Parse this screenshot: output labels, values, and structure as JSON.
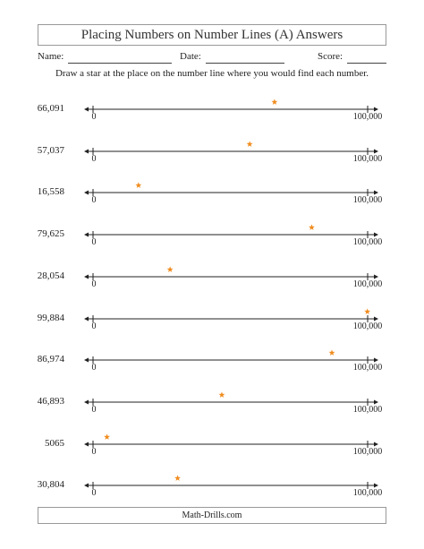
{
  "title": "Placing Numbers on Number Lines (A) Answers",
  "fields": {
    "name_label": "Name:",
    "date_label": "Date:",
    "score_label": "Score:"
  },
  "instructions": "Draw a star at the place on the number line where you would find each number.",
  "number_line": {
    "min_label": "0",
    "max_label": "100,000",
    "min": 0,
    "max": 100000
  },
  "star_color": "#f08c1e",
  "problems": [
    {
      "label": "66,091",
      "value": 66091
    },
    {
      "label": "57,037",
      "value": 57037
    },
    {
      "label": "16,558",
      "value": 16558
    },
    {
      "label": "79,625",
      "value": 79625
    },
    {
      "label": "28,054",
      "value": 28054
    },
    {
      "label": "99,884",
      "value": 99884
    },
    {
      "label": "86,974",
      "value": 86974
    },
    {
      "label": "46,893",
      "value": 46893
    },
    {
      "label": "5065",
      "value": 5065
    },
    {
      "label": "30,804",
      "value": 30804
    }
  ],
  "footer": "Math-Drills.com"
}
